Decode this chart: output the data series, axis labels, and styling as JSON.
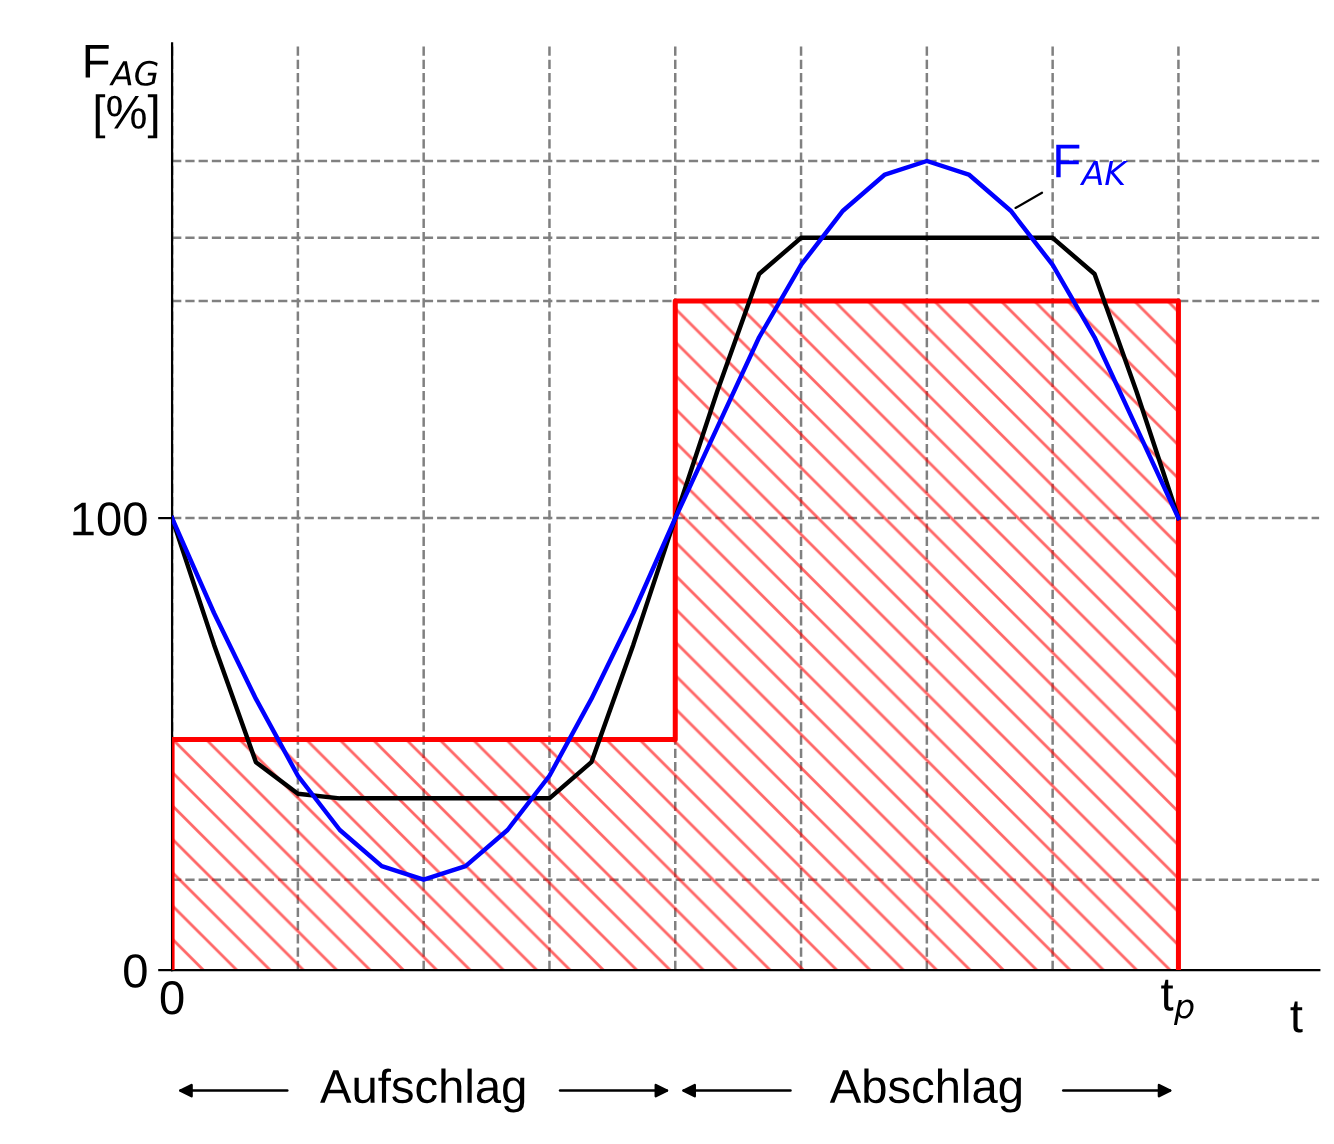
{
  "chart_data": {
    "type": "line",
    "xlabel": "t",
    "ylabel": "F$_{AG}$\n[%]",
    "categories": [
      "0",
      null,
      null,
      null,
      null,
      null,
      null,
      null,
      null,
      null,
      null,
      null,
      null,
      null,
      null,
      null,
      null,
      null,
      null,
      null,
      null,
      null,
      null,
      null,
      "t$_{p}$"
    ],
    "ylim": [
      0,
      205
    ],
    "yticks": [
      0,
      100
    ],
    "grid": "x",
    "line_style": "solid",
    "marker": "none",
    "series": [
      {
        "type": "area",
        "color": "#ff0000",
        "values": [
          51,
          51,
          51,
          51,
          51,
          51,
          51,
          51,
          51,
          51,
          51,
          51,
          148,
          148,
          148,
          148,
          148,
          148,
          148,
          148,
          148,
          148,
          148,
          148,
          148
        ]
      },
      {
        "color": "#000000",
        "values": [
          100,
          72,
          46,
          39,
          38,
          38,
          38,
          38,
          38,
          38,
          46,
          72,
          100,
          128,
          154,
          162,
          162,
          162,
          162,
          162,
          162,
          162,
          154,
          128,
          100
        ]
      },
      {
        "name": "F$_{AK}$",
        "color": "#0000ff",
        "values": [
          100,
          79,
          60,
          43,
          31,
          23,
          20,
          23,
          31,
          43,
          60,
          79,
          100,
          120,
          140,
          156,
          168,
          176,
          179,
          176,
          168,
          156,
          140,
          120,
          100
        ]
      }
    ],
    "ref_lines": [
      {
        "axis": "y",
        "value": 20,
        "color": "#808080",
        "line_style": "dashed"
      },
      {
        "axis": "y",
        "value": 100,
        "color": "#808080",
        "line_style": "dashed"
      },
      {
        "axis": "y",
        "value": 148,
        "color": "#808080",
        "line_style": "dashed"
      },
      {
        "axis": "y",
        "value": 162,
        "color": "#808080",
        "line_style": "dashed"
      },
      {
        "axis": "y",
        "value": 179,
        "color": "#808080",
        "line_style": "dashed"
      }
    ],
    "annotations": [
      "Aufschlag",
      "Abschlag"
    ]
  }
}
